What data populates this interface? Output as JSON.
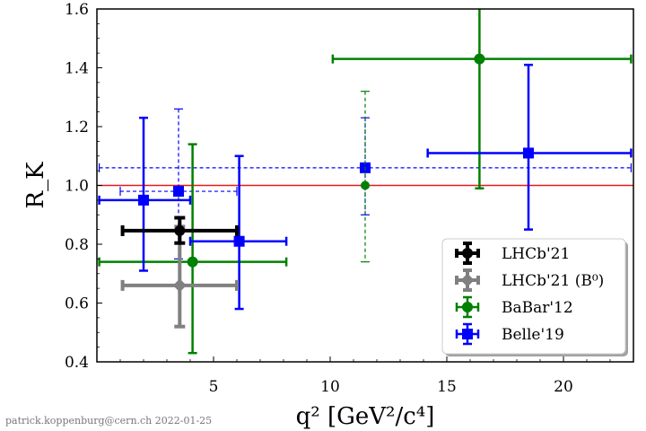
{
  "chart_data": {
    "type": "scatter",
    "title": "",
    "xlabel": "q² [GeV²/c⁴]",
    "ylabel": "R_K",
    "xlim": [
      0,
      23
    ],
    "ylim": [
      0.4,
      1.6
    ],
    "xticks": [
      5,
      10,
      15,
      20
    ],
    "yticks": [
      0.4,
      0.6,
      0.8,
      1.0,
      1.2,
      1.4,
      1.6
    ],
    "xtick_labels": [
      "5",
      "10",
      "15",
      "20"
    ],
    "ytick_labels": [
      "0.4",
      "0.6",
      "0.8",
      "1.0",
      "1.2",
      "1.4",
      "1.6"
    ],
    "reference_line": {
      "y": 1.0,
      "color": "#e41a1c"
    },
    "legend_position": "lower-right",
    "series": [
      {
        "name": "LHCb'21",
        "color": "#000000",
        "marker": "circle",
        "linestyle": "solid",
        "linewidth": 4,
        "points": [
          {
            "x": 3.55,
            "xlo": 1.1,
            "xhi": 6.0,
            "y": 0.846,
            "ylo": 0.804,
            "yhi": 0.89
          }
        ]
      },
      {
        "name": "LHCb'21 (B⁰)",
        "color": "#808080",
        "marker": "diamond",
        "linestyle": "solid",
        "linewidth": 4,
        "points": [
          {
            "x": 3.55,
            "xlo": 1.1,
            "xhi": 6.0,
            "y": 0.66,
            "ylo": 0.52,
            "yhi": 0.86
          }
        ]
      },
      {
        "name": "BaBar'12",
        "color": "#008000",
        "marker": "circle",
        "linestyle": "solid",
        "linewidth": 2.5,
        "points": [
          {
            "x": 4.1,
            "xlo": 0.1,
            "xhi": 8.12,
            "y": 0.74,
            "ylo": 0.43,
            "yhi": 1.14
          },
          {
            "x": 16.4,
            "xlo": 10.11,
            "xhi": 22.9,
            "y": 1.43,
            "ylo": 0.99,
            "yhi": 1.6
          }
        ]
      },
      {
        "name": "BaBar'12",
        "color": "#008000",
        "marker": "circle",
        "linestyle": "dashed",
        "linewidth": 1.2,
        "points": [
          {
            "x": 11.5,
            "xlo": 11.5,
            "xhi": 11.5,
            "y": 1.0,
            "ylo": 0.74,
            "yhi": 1.32
          }
        ]
      },
      {
        "name": "Belle'19",
        "color": "#0000ff",
        "marker": "square",
        "linestyle": "solid",
        "linewidth": 2.5,
        "points": [
          {
            "x": 2.0,
            "xlo": 0.1,
            "xhi": 4.0,
            "y": 0.95,
            "ylo": 0.71,
            "yhi": 1.23
          },
          {
            "x": 6.1,
            "xlo": 4.0,
            "xhi": 8.12,
            "y": 0.81,
            "ylo": 0.58,
            "yhi": 1.1
          },
          {
            "x": 18.5,
            "xlo": 14.18,
            "xhi": 22.9,
            "y": 1.11,
            "ylo": 0.85,
            "yhi": 1.41
          }
        ]
      },
      {
        "name": "Belle'19",
        "color": "#0000ff",
        "marker": "square",
        "linestyle": "dashed",
        "linewidth": 1.2,
        "points": [
          {
            "x": 3.5,
            "xlo": 1.0,
            "xhi": 6.0,
            "y": 0.98,
            "ylo": 0.75,
            "yhi": 1.26
          },
          {
            "x": 11.5,
            "xlo": 0.1,
            "xhi": 22.9,
            "y": 1.06,
            "ylo": 0.9,
            "yhi": 1.23
          }
        ]
      }
    ],
    "legend": [
      {
        "label": "LHCb'21",
        "color": "#000000",
        "marker": "circle",
        "linewidth": 4
      },
      {
        "label": "LHCb'21 (B⁰)",
        "color": "#808080",
        "marker": "diamond",
        "linewidth": 4
      },
      {
        "label": "BaBar'12",
        "color": "#008000",
        "marker": "circle",
        "linewidth": 2.5
      },
      {
        "label": "Belle'19",
        "color": "#0000ff",
        "marker": "square",
        "linewidth": 2.5
      }
    ]
  },
  "footer_text": "patrick.koppenburg@cern.ch  2022-01-25"
}
